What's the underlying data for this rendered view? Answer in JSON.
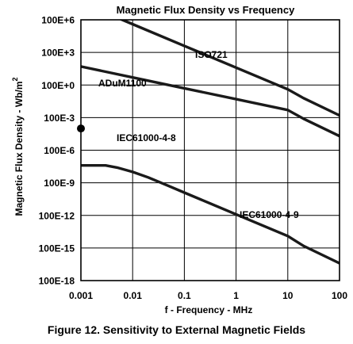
{
  "caption": "Figure 12. Sensitivity to External Magnetic Fields",
  "chart_data": {
    "type": "line",
    "title": "Magnetic Flux Density vs Frequency",
    "xlabel": "f - Frequency - MHz",
    "ylabel": "Magnetic Flux Density - Wb/m",
    "ylabel_superscript": "2",
    "xscale": "log",
    "yscale": "log",
    "xlim": [
      0.001,
      100
    ],
    "ylim_exp": [
      -18,
      6
    ],
    "x_ticks": [
      "0.001",
      "0.01",
      "0.1",
      "1",
      "10",
      "100"
    ],
    "y_ticks": [
      "100E+6",
      "100E+3",
      "100E+0",
      "100E-3",
      "100E-6",
      "100E-9",
      "100E-12",
      "100E-15",
      "100E-18"
    ],
    "grid": true,
    "series": [
      {
        "name": "ISO721",
        "x": [
          0.001,
          0.01,
          0.1,
          1,
          10,
          20,
          100
        ],
        "log10_y": [
          7.6,
          5.6,
          3.6,
          1.6,
          -0.4,
          -1.2,
          -2.8
        ]
      },
      {
        "name": "ADuM1100",
        "x": [
          0.001,
          0.01,
          0.1,
          1,
          10,
          20,
          100
        ],
        "log10_y": [
          1.7,
          0.7,
          -0.3,
          -1.3,
          -2.3,
          -3.1,
          -4.7
        ]
      },
      {
        "name": "IEC61000-4-8",
        "x": [
          0.001
        ],
        "log10_y": [
          -4
        ],
        "marker": "dot"
      },
      {
        "name": "IEC61000-4-9",
        "x": [
          0.001,
          0.002,
          0.003,
          0.005,
          0.01,
          0.02,
          0.05,
          0.1,
          1,
          10,
          20,
          100
        ],
        "log10_y": [
          -7.4,
          -7.4,
          -7.4,
          -7.6,
          -8.0,
          -8.5,
          -9.3,
          -9.9,
          -11.9,
          -13.9,
          -14.8,
          -16.4
        ]
      }
    ]
  }
}
